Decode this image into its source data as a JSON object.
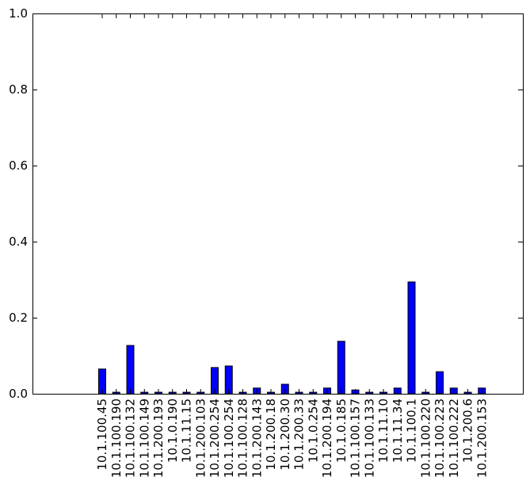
{
  "chart_data": {
    "type": "bar",
    "title": "",
    "xlabel": "",
    "ylabel": "",
    "ylim": [
      0,
      1.0
    ],
    "yticks": [
      "0.0",
      "0.2",
      "0.4",
      "0.6",
      "0.8",
      "1.0"
    ],
    "grid": false,
    "legend": "none",
    "bar_color": "#0000ff",
    "categories": [
      "10.1.100.45",
      "10.1.100.190",
      "10.1.100.132",
      "10.1.100.149",
      "10.1.200.193",
      "10.1.0.190",
      "10.1.11.15",
      "10.1.200.103",
      "10.1.200.254",
      "10.1.100.254",
      "10.1.100.128",
      "10.1.200.143",
      "10.1.200.18",
      "10.1.200.30",
      "10.1.200.33",
      "10.1.0.254",
      "10.1.200.194",
      "10.1.0.185",
      "10.1.100.157",
      "10.1.100.133",
      "10.1.11.10",
      "10.1.11.34",
      "10.1.100.1",
      "10.1.100.220",
      "10.1.100.223",
      "10.1.100.222",
      "10.1.200.6",
      "10.1.200.153"
    ],
    "values": [
      0.065,
      0.004,
      0.127,
      0.004,
      0.004,
      0.004,
      0.004,
      0.004,
      0.069,
      0.073,
      0.004,
      0.015,
      0.004,
      0.025,
      0.004,
      0.004,
      0.015,
      0.138,
      0.01,
      0.004,
      0.004,
      0.015,
      0.294,
      0.004,
      0.058,
      0.015,
      0.004,
      0.015
    ]
  }
}
